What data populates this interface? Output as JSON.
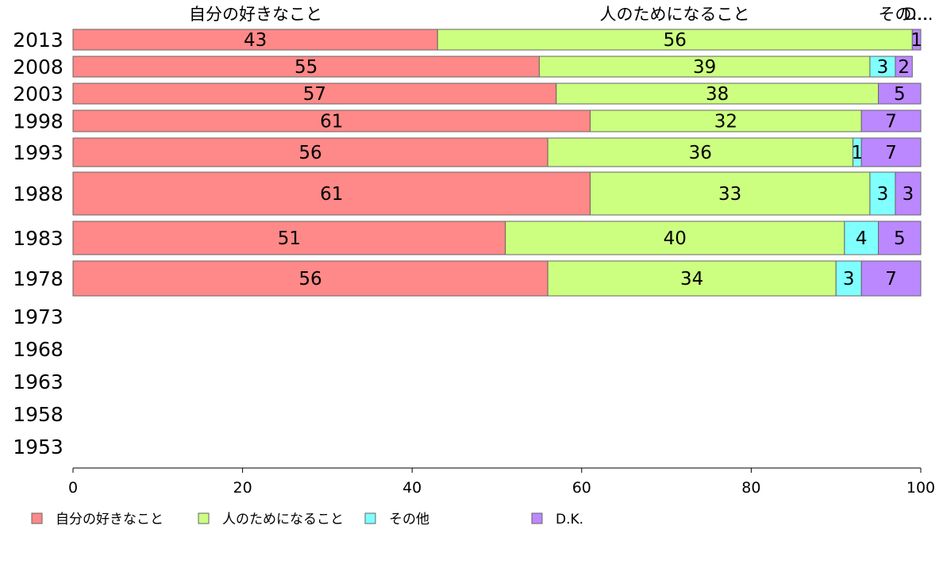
{
  "chart_data": {
    "type": "bar",
    "orientation": "horizontal",
    "stacked": true,
    "categories": [
      "2013",
      "2008",
      "2003",
      "1998",
      "1993",
      "1988",
      "1983",
      "1978",
      "1973",
      "1968",
      "1963",
      "1958",
      "1953"
    ],
    "series": [
      {
        "name": "自分の好きなこと",
        "color": "#ff8888",
        "values": [
          43,
          55,
          57,
          61,
          56,
          61,
          51,
          56,
          null,
          null,
          null,
          null,
          null
        ]
      },
      {
        "name": "人のためになること",
        "color": "#ccff80",
        "values": [
          56,
          39,
          38,
          32,
          36,
          33,
          40,
          34,
          null,
          null,
          null,
          null,
          null
        ]
      },
      {
        "name": "その他",
        "color": "#80ffff",
        "values": [
          0,
          3,
          0,
          0,
          1,
          3,
          4,
          3,
          null,
          null,
          null,
          null,
          null
        ]
      },
      {
        "name": "D.K.",
        "color": "#bb88ff",
        "values": [
          1,
          2,
          5,
          7,
          7,
          3,
          5,
          7,
          null,
          null,
          null,
          null,
          null
        ]
      }
    ],
    "top_labels": [
      "自分の好きなこと",
      "人のためになること",
      "その…",
      "D…"
    ],
    "x_ticks": [
      0,
      20,
      40,
      60,
      80,
      100
    ],
    "xlim": [
      0,
      100
    ],
    "legend": {
      "labels": [
        "自分の好きなこと",
        "人のためになること",
        "その他",
        "D.K."
      ],
      "placement": "bottom"
    },
    "grid": false
  }
}
